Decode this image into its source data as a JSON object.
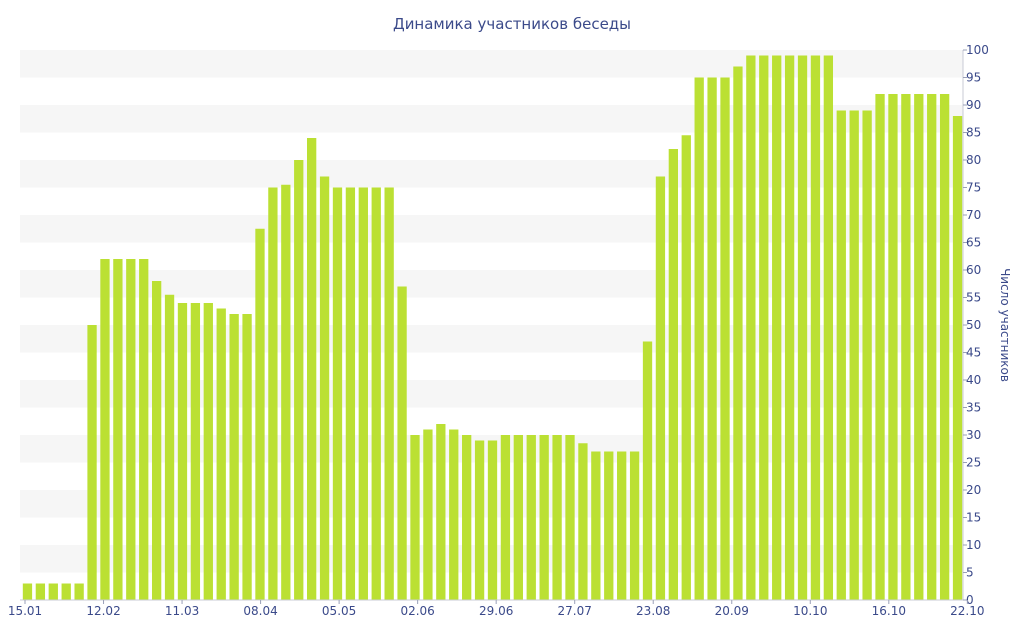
{
  "chart_data": {
    "type": "bar",
    "title": "Динамика участников беседы",
    "xlabel": "",
    "ylabel": "Число участников",
    "y_axis_position": "right",
    "ylim": [
      0,
      100
    ],
    "y_ticks": [
      0,
      5,
      10,
      15,
      20,
      25,
      30,
      35,
      40,
      45,
      50,
      55,
      60,
      65,
      70,
      75,
      80,
      85,
      90,
      95,
      100
    ],
    "x_tick_labels": [
      "15.01",
      "12.02",
      "11.03",
      "08.04",
      "05.05",
      "02.06",
      "29.06",
      "27.07",
      "23.08",
      "20.09",
      "10.10",
      "16.10",
      "22.10"
    ],
    "values": [
      3,
      3,
      3,
      3,
      3,
      50,
      62,
      62,
      62,
      62,
      58,
      55.5,
      54,
      54,
      54,
      53,
      52,
      52,
      67.5,
      75,
      75.5,
      80,
      84,
      77,
      75,
      75,
      75,
      75,
      75,
      57,
      30,
      31,
      32,
      31,
      30,
      29,
      29,
      30,
      30,
      30,
      30,
      30,
      30,
      28.5,
      27,
      27,
      27,
      27,
      47,
      77,
      82,
      84.5,
      95,
      95,
      95,
      97,
      99,
      99,
      99,
      99,
      99,
      99,
      99,
      89,
      89,
      89,
      92,
      92,
      92,
      92,
      92,
      92,
      88
    ],
    "grid": "horizontal bands",
    "bar_color": "#bbe033",
    "band_color": "#f6f6f6",
    "axis_text_color": "#3b4a8a"
  }
}
